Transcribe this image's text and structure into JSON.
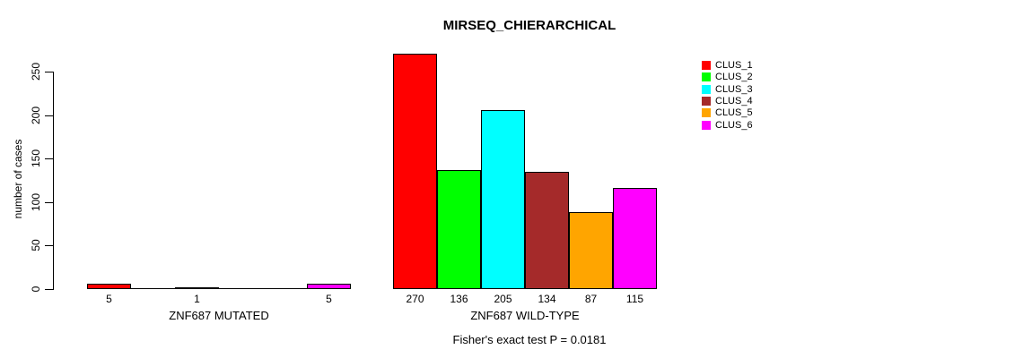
{
  "chart_data": {
    "type": "bar",
    "title": "MIRSEQ_CHIERARCHICAL",
    "ylabel": "number of cases",
    "footer": "Fisher's exact test P = 0.0181",
    "yticks": [
      0,
      50,
      100,
      150,
      200,
      250
    ],
    "ylim": [
      0,
      278
    ],
    "grid": false,
    "legend_position": "right",
    "bar_border_color": "#000000",
    "clusters": [
      {
        "name": "CLUS_1",
        "color": "#FF0000"
      },
      {
        "name": "CLUS_2",
        "color": "#00FF00"
      },
      {
        "name": "CLUS_3",
        "color": "#00FFFF"
      },
      {
        "name": "CLUS_4",
        "color": "#A52A2A"
      },
      {
        "name": "CLUS_5",
        "color": "#FFA500"
      },
      {
        "name": "CLUS_6",
        "color": "#FF00FF"
      }
    ],
    "groups": [
      {
        "label": "ZNF687 MUTATED",
        "values": [
          5,
          0,
          1,
          0,
          0,
          5
        ],
        "bar_labels": [
          "5",
          "",
          "1",
          "",
          "",
          "5"
        ]
      },
      {
        "label": "ZNF687 WILD-TYPE",
        "values": [
          270,
          136,
          205,
          134,
          87,
          115
        ],
        "bar_labels": [
          "270",
          "136",
          "205",
          "134",
          "87",
          "115"
        ]
      }
    ]
  }
}
